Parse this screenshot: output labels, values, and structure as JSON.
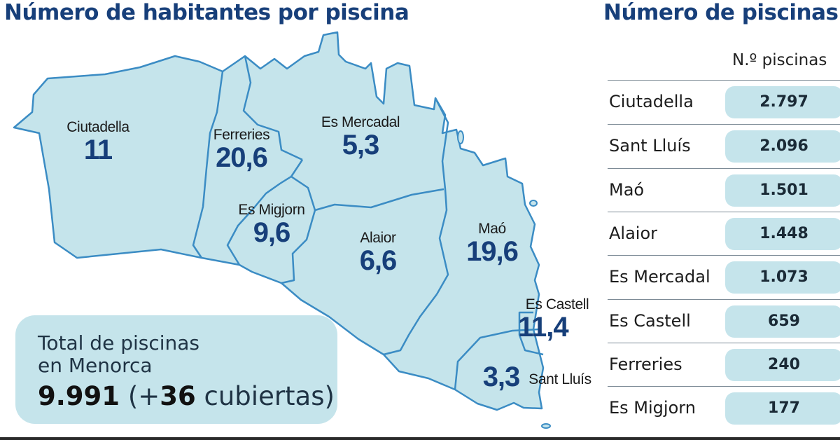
{
  "map": {
    "title": "Número de habitantes por piscina",
    "municipalities": [
      {
        "name": "Ciutadella",
        "value": "11"
      },
      {
        "name": "Ferreries",
        "value": "20,6"
      },
      {
        "name": "Es Mercadal",
        "value": "5,3"
      },
      {
        "name": "Es Migjorn",
        "value": "9,6"
      },
      {
        "name": "Alaior",
        "value": "6,6"
      },
      {
        "name": "Maó",
        "value": "19,6"
      },
      {
        "name": "Es Castell",
        "value": "11,4"
      },
      {
        "name": "Sant Lluís",
        "value": "3,3"
      }
    ],
    "colors": {
      "land": "#c5e4eb",
      "border": "#3b8cc4",
      "value_text": "#173f7a"
    }
  },
  "total": {
    "line1": "Total de piscinas",
    "line2": "en Menorca",
    "number": "9.991",
    "paren_open": "(+",
    "covered_number": "36",
    "covered_text": "cubiertas)"
  },
  "table": {
    "title": "Número de piscinas",
    "column_header": "N.º piscinas",
    "rows": [
      {
        "municipality": "Ciutadella",
        "pools": "2.797"
      },
      {
        "municipality": "Sant Lluís",
        "pools": "2.096"
      },
      {
        "municipality": "Maó",
        "pools": "1.501"
      },
      {
        "municipality": "Alaior",
        "pools": "1.448"
      },
      {
        "municipality": "Es Mercadal",
        "pools": "1.073"
      },
      {
        "municipality": "Es Castell",
        "pools": "659"
      },
      {
        "municipality": "Ferreries",
        "pools": "240"
      },
      {
        "municipality": "Es Migjorn",
        "pools": "177"
      }
    ]
  }
}
